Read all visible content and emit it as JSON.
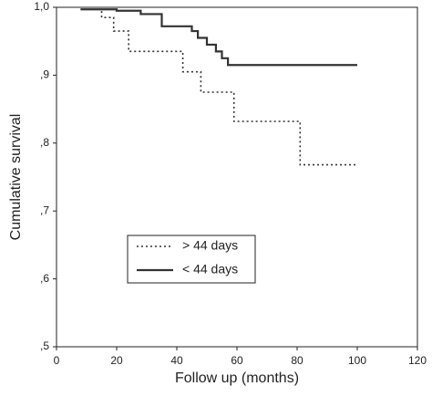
{
  "chart_data": {
    "type": "line",
    "x_label": "Follow up (months)",
    "y_label": "Cumulative survival",
    "xlim": [
      0,
      120
    ],
    "xticks": [
      0,
      20,
      40,
      60,
      80,
      100,
      120
    ],
    "ylim": [
      0.5,
      1.0
    ],
    "yticks": [
      {
        "value": 0.5,
        "label": ",5"
      },
      {
        "value": 0.6,
        "label": ",6"
      },
      {
        "value": 0.7,
        "label": ",7"
      },
      {
        "value": 0.8,
        "label": ",8"
      },
      {
        "value": 0.9,
        "label": ",9"
      },
      {
        "value": 1.0,
        "label": "1,0"
      }
    ],
    "grid": false,
    "legend_position": "lower-left",
    "series": [
      {
        "name": "> 44 days",
        "color": "#333333",
        "dash": "dotted",
        "x": [
          8,
          15,
          15,
          19,
          19,
          24,
          24,
          42,
          42,
          48,
          48,
          59,
          59,
          81,
          81,
          100
        ],
        "values": [
          0.997,
          0.997,
          0.985,
          0.985,
          0.965,
          0.965,
          0.935,
          0.935,
          0.905,
          0.905,
          0.875,
          0.875,
          0.832,
          0.832,
          0.768,
          0.768
        ]
      },
      {
        "name": "< 44 days",
        "color": "#333333",
        "dash": "solid",
        "x": [
          8,
          20,
          20,
          28,
          28,
          35,
          35,
          45,
          45,
          47,
          47,
          50,
          50,
          53,
          53,
          55,
          55,
          57,
          57,
          100
        ],
        "values": [
          0.997,
          0.997,
          0.995,
          0.995,
          0.99,
          0.99,
          0.972,
          0.972,
          0.965,
          0.965,
          0.955,
          0.955,
          0.945,
          0.945,
          0.935,
          0.935,
          0.925,
          0.925,
          0.915,
          0.915
        ]
      }
    ]
  }
}
